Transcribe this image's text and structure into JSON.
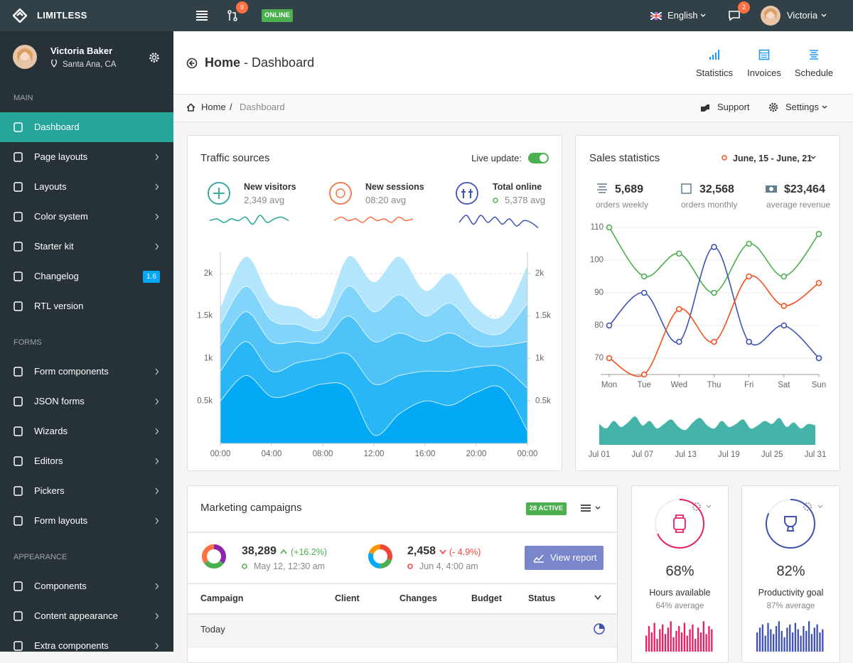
{
  "navbar": {
    "brand": "LIMITLESS",
    "pr_badge": "9",
    "status": "ONLINE",
    "language": "English",
    "messages_badge": "2",
    "user": "Victoria"
  },
  "sidebar": {
    "user_name": "Victoria Baker",
    "user_location": "Santa Ana, CA",
    "sections": [
      {
        "title": "MAIN",
        "items": [
          {
            "label": "Dashboard",
            "active": true
          },
          {
            "label": "Page layouts",
            "submenu": true
          },
          {
            "label": "Layouts",
            "submenu": true
          },
          {
            "label": "Color system",
            "submenu": true
          },
          {
            "label": "Starter kit",
            "submenu": true
          },
          {
            "label": "Changelog",
            "badge": "1.6"
          },
          {
            "label": "RTL version"
          }
        ]
      },
      {
        "title": "FORMS",
        "items": [
          {
            "label": "Form components",
            "submenu": true
          },
          {
            "label": "JSON forms",
            "submenu": true
          },
          {
            "label": "Wizards",
            "submenu": true
          },
          {
            "label": "Editors",
            "submenu": true
          },
          {
            "label": "Pickers",
            "submenu": true
          },
          {
            "label": "Form layouts",
            "submenu": true
          }
        ]
      },
      {
        "title": "APPEARANCE",
        "items": [
          {
            "label": "Components",
            "submenu": true
          },
          {
            "label": "Content appearance",
            "submenu": true
          },
          {
            "label": "Extra components",
            "submenu": true
          }
        ]
      }
    ]
  },
  "page_header": {
    "title": "Home",
    "subtitle": "- Dashboard",
    "actions": [
      "Statistics",
      "Invoices",
      "Schedule"
    ]
  },
  "breadcrumb": {
    "items": [
      "Home",
      "Dashboard"
    ],
    "links": [
      "Support",
      "Settings"
    ]
  },
  "traffic": {
    "live_update": "Live update:",
    "stats": [
      {
        "title": "New visitors",
        "value": "2,349 avg"
      },
      {
        "title": "New sessions",
        "value": "08:20 avg"
      },
      {
        "title": "Total online",
        "value": "5,378 avg"
      }
    ]
  },
  "sales": {
    "date_range": "June, 15 - June, 21",
    "stats": [
      {
        "value": "5,689",
        "label": "orders weekly"
      },
      {
        "value": "32,568",
        "label": "orders monthly"
      },
      {
        "value": "$23,464",
        "label": "average revenue"
      }
    ]
  },
  "marketing": {
    "title": "Marketing campaigns",
    "badge": "28 ACTIVE",
    "stats": [
      {
        "value": "38,289",
        "change": "(+16.2%)",
        "date": "May 12, 12:30 am"
      },
      {
        "value": "2,458",
        "change": "(- 4.9%)",
        "date": "Jun 4, 4:00 am"
      }
    ],
    "button": "View report",
    "columns": [
      "Campaign",
      "Client",
      "Changes",
      "Budget",
      "Status"
    ],
    "group": "Today"
  },
  "progress_cards": [
    {
      "value": 68,
      "value_label": "68%",
      "title": "Hours available",
      "subtitle": "64% average",
      "color": "#e91e63"
    },
    {
      "value": 82,
      "value_label": "82%",
      "title": "Productivity goal",
      "subtitle": "87% average",
      "color": "#3f51b5"
    }
  ],
  "chart_data": [
    {
      "type": "stream",
      "title": "Traffic sources",
      "categories": [
        "00:00",
        null,
        "04:00",
        null,
        "08:00",
        null,
        "12:00",
        null,
        "16:00",
        null,
        "20:00",
        null,
        "00:00"
      ],
      "series": [
        {
          "color": "#03a9f4",
          "values": [
            500,
            800,
            550,
            600,
            700,
            650,
            100,
            350,
            500,
            450,
            600,
            650,
            150
          ]
        },
        {
          "color": "#29b6f6",
          "values": [
            350,
            400,
            300,
            350,
            300,
            400,
            600,
            450,
            350,
            400,
            300,
            250,
            500
          ]
        },
        {
          "color": "#4fc3f7",
          "values": [
            300,
            350,
            350,
            250,
            200,
            450,
            500,
            500,
            350,
            450,
            250,
            250,
            550
          ]
        },
        {
          "color": "#81d4fa",
          "values": [
            250,
            300,
            250,
            200,
            150,
            350,
            350,
            450,
            300,
            350,
            200,
            150,
            450
          ]
        },
        {
          "color": "#b3e5fc",
          "values": [
            200,
            350,
            250,
            200,
            150,
            350,
            350,
            450,
            300,
            350,
            250,
            200,
            450
          ]
        }
      ],
      "ylim": [
        0,
        2250
      ],
      "yticks": [
        {
          "value": 500,
          "label": "0.5k"
        },
        {
          "value": 1000,
          "label": "1k"
        },
        {
          "value": 1500,
          "label": "1.5k"
        },
        {
          "value": 2000,
          "label": "2k"
        }
      ],
      "y2lim": [
        0,
        2250
      ],
      "y2ticks": [
        {
          "value": 500,
          "label": "0.5k"
        },
        {
          "value": 1000,
          "label": "1k"
        },
        {
          "value": 1500,
          "label": "1.5k"
        },
        {
          "value": 2000,
          "label": "2k"
        }
      ],
      "grid": true
    },
    {
      "type": "sparkline",
      "color": "#26a69a",
      "values": [
        5,
        6,
        4,
        6,
        5,
        7,
        3,
        8,
        4,
        6,
        7,
        5
      ]
    },
    {
      "type": "sparkline",
      "color": "#ff7043",
      "values": [
        5,
        7,
        5,
        6,
        4,
        7,
        5,
        6,
        4,
        7,
        5,
        6
      ]
    },
    {
      "type": "sparkline",
      "color": "#3f51b5",
      "values": [
        4,
        8,
        3,
        8,
        4,
        7,
        3,
        6,
        2,
        5,
        4,
        1
      ]
    },
    {
      "type": "line",
      "title": "Sales statistics",
      "categories": [
        "Mon",
        "Tue",
        "Wed",
        "Thu",
        "Fri",
        "Sat",
        "Sun"
      ],
      "series": [
        {
          "color": "#4caf50",
          "values": [
            110,
            95,
            102,
            90,
            105,
            95,
            108
          ]
        },
        {
          "color": "#3f51b5",
          "values": [
            80,
            90,
            75,
            104,
            75,
            80,
            70
          ]
        },
        {
          "color": "#f4511e",
          "values": [
            70,
            65,
            85,
            75,
            95,
            86,
            93
          ]
        }
      ],
      "ylim": [
        65,
        110
      ],
      "yticks": [
        70,
        80,
        90,
        100,
        110
      ],
      "grid": true
    },
    {
      "type": "area",
      "color": "#26a69a",
      "categories": [
        "Jul 01",
        null,
        null,
        null,
        null,
        null,
        "Jul 07",
        null,
        null,
        null,
        null,
        null,
        "Jul 13",
        null,
        null,
        null,
        null,
        null,
        "Jul 19",
        null,
        null,
        null,
        null,
        null,
        "Jul 25",
        null,
        null,
        null,
        null,
        null,
        "Jul 31"
      ],
      "values": [
        70,
        55,
        80,
        60,
        75,
        95,
        65,
        80,
        55,
        70,
        85,
        60,
        50,
        75,
        90,
        65,
        55,
        80,
        60,
        70,
        85,
        55,
        65,
        80,
        70,
        90,
        60,
        75,
        55,
        70,
        65
      ]
    },
    {
      "type": "donut",
      "colors": [
        "#8e24aa",
        "#4caf50",
        "#ff7043"
      ],
      "values": [
        35,
        30,
        35
      ]
    },
    {
      "type": "donut",
      "colors": [
        "#f44336",
        "#4caf50",
        "#03a9f4",
        "#ff9800"
      ],
      "values": [
        30,
        20,
        30,
        20
      ]
    },
    {
      "type": "bar",
      "color": "#e91e63",
      "values": [
        50,
        80,
        60,
        90,
        40,
        70,
        85,
        55,
        75,
        95,
        45,
        65,
        80,
        60,
        90,
        50,
        70,
        85,
        40,
        75,
        60,
        95,
        55,
        80,
        70
      ]
    },
    {
      "type": "bar",
      "color": "#3f51b5",
      "values": [
        60,
        75,
        85,
        50,
        90,
        70,
        55,
        80,
        95,
        65,
        45,
        75,
        85,
        60,
        90,
        70,
        50,
        80,
        65,
        95,
        55,
        75,
        85,
        60,
        70
      ]
    }
  ]
}
